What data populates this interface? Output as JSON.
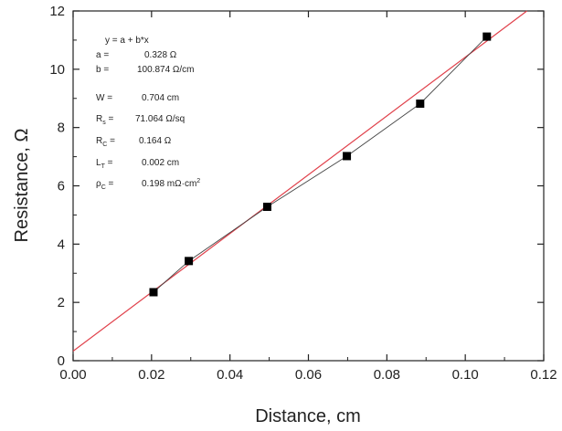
{
  "chart_data": {
    "type": "scatter",
    "xlabel": "Distance, cm",
    "ylabel": "Resistance, Ω",
    "xlim": [
      0.0,
      0.12
    ],
    "ylim": [
      0,
      12
    ],
    "x_ticks": [
      "0.00",
      "0.02",
      "0.04",
      "0.06",
      "0.08",
      "0.10",
      "0.12"
    ],
    "y_ticks": [
      "0",
      "2",
      "4",
      "6",
      "8",
      "10",
      "12"
    ],
    "x_tick_values": [
      0.0,
      0.02,
      0.04,
      0.06,
      0.08,
      0.1,
      0.12
    ],
    "y_tick_values": [
      0,
      2,
      4,
      6,
      8,
      10,
      12
    ],
    "series": [
      {
        "x": [
          0.0205,
          0.0295,
          0.0495,
          0.0698,
          0.0885,
          0.1055
        ],
        "y": [
          2.35,
          3.42,
          5.28,
          7.02,
          8.82,
          11.12
        ],
        "marker": "square",
        "color": "#000000",
        "connect_line_color": "#444444"
      }
    ],
    "fit": {
      "intercept": 0.328,
      "slope": 100.874,
      "color": "#e0404a"
    },
    "annotations": {
      "equation": "y = a + b*x",
      "a": {
        "label": "a =",
        "value": "0.328 Ω"
      },
      "b": {
        "label": "b =",
        "value": "100.874 Ω/cm"
      },
      "W": {
        "label": "W =",
        "value": "0.704 cm"
      },
      "Rs": {
        "label": "R",
        "sub": "s",
        "eq": " =",
        "value": "71.064 Ω/sq"
      },
      "Rc": {
        "label": "R",
        "sub": "C",
        "eq": " =",
        "value": "0.164 Ω"
      },
      "Lt": {
        "label": "L",
        "sub": "T",
        "eq": " =",
        "value": "0.002 cm"
      },
      "rhoc": {
        "label": "ρ",
        "sub": "C",
        "eq": " =",
        "value_main": "0.198 mΩ·cm",
        "value_sup": "2"
      }
    }
  }
}
